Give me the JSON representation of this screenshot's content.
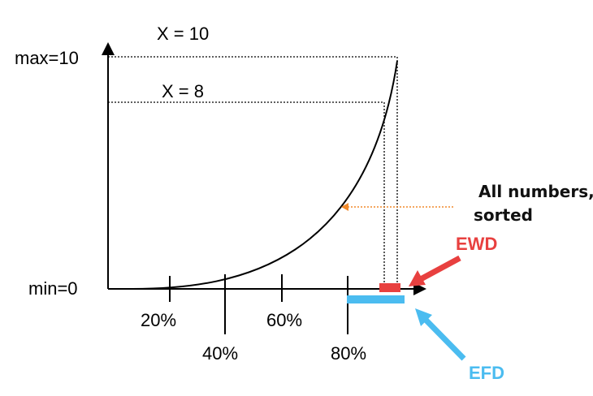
{
  "labels": {
    "x10": "X = 10",
    "x8": "X = 8",
    "max": "max=10",
    "min": "min=0",
    "ticks": [
      "20%",
      "40%",
      "60%",
      "80%"
    ],
    "note_line1": "All numbers,",
    "note_line2": "sorted",
    "ewd": "EWD",
    "efd": "EFD"
  },
  "colors": {
    "axis": "#000000",
    "curve": "#000000",
    "ewd": "#e8403f",
    "efd": "#4bbcf0",
    "note_arrow": "#f08a2c"
  }
}
